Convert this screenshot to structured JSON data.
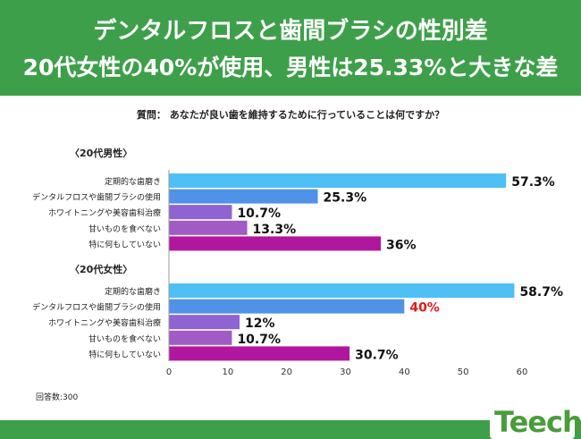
{
  "header": {
    "title_line1": "デンタルフロスと歯間ブラシの性別差",
    "title_line2": "20代女性の40%が使用、男性は25.33%と大きな差"
  },
  "question": "質問： あなたが良い歯を維持するために行っていることは何ですか？",
  "footer": {
    "respondents": "回答数:300"
  },
  "logo": {
    "text": "Teech"
  },
  "colors": {
    "header_bg": "#3e9f4b",
    "bar_light_blue": "#4ec0f5",
    "bar_blue": "#4f92e8",
    "bar_purple": "#8e63d2",
    "bar_lavender": "#a05bc6",
    "bar_magenta": "#b0179e",
    "highlight_label": "#e0191b"
  },
  "chart_data": {
    "type": "bar",
    "orientation": "horizontal",
    "xlim": [
      0,
      60
    ],
    "xticks": [
      "0",
      "10",
      "20",
      "30",
      "40",
      "50",
      "60"
    ],
    "grid": false,
    "groups": [
      {
        "name": "〈20代男性〉",
        "categories": [
          "定期的な歯磨き",
          "デンタルフロスや歯間ブラシの使用",
          "ホワイトニングや美容歯科治療",
          "甘いものを食べない",
          "特に何もしていない"
        ],
        "values": [
          57.3,
          25.3,
          10.7,
          13.3,
          36
        ],
        "labels": [
          "57.3%",
          "25.3%",
          "10.7%",
          "13.3%",
          "36%"
        ]
      },
      {
        "name": "〈20代女性〉",
        "categories": [
          "定期的な歯磨き",
          "デンタルフロスや歯間ブラシの使用",
          "ホワイトニングや美容歯科治療",
          "甘いものを食べない",
          "特に何もしていない"
        ],
        "values": [
          58.7,
          40,
          12,
          10.7,
          30.7
        ],
        "labels": [
          "58.7%",
          "40%",
          "12%",
          "10.7%",
          "30.7%"
        ],
        "highlight_index": 1
      }
    ]
  }
}
